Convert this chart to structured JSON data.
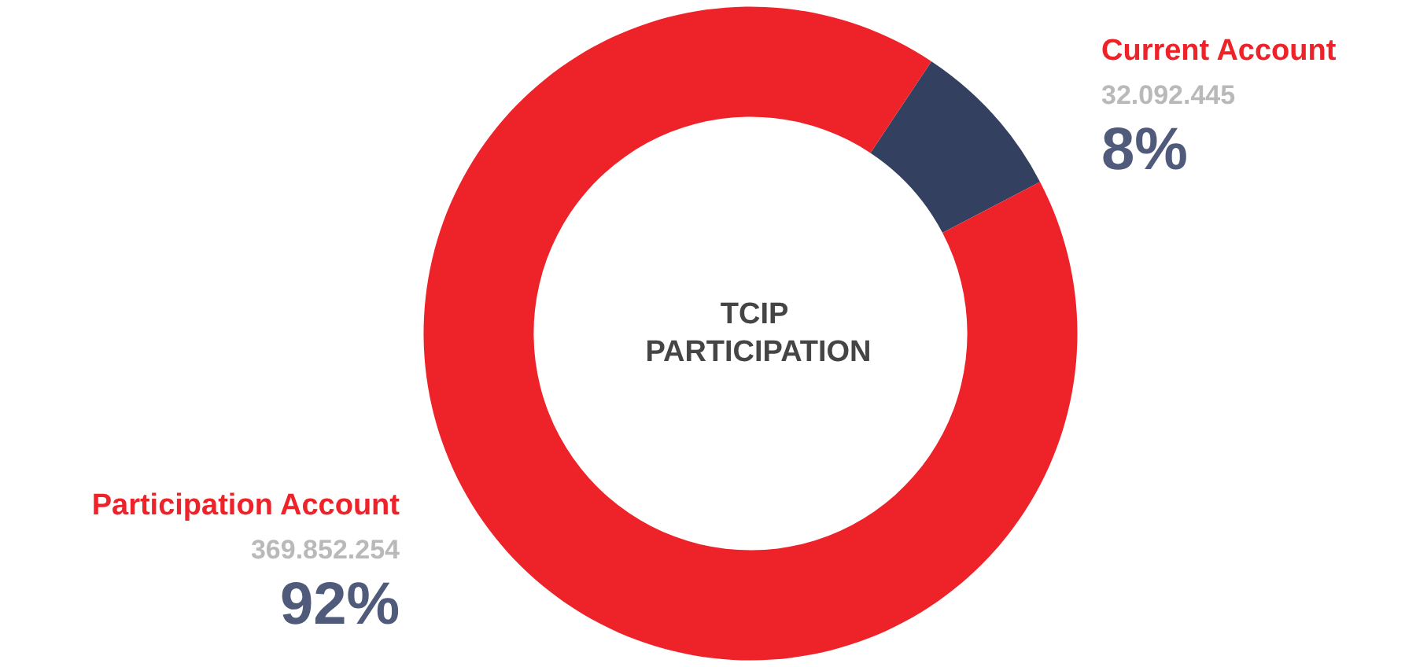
{
  "chart_data": {
    "type": "donut",
    "title": "TCIP PARTICIPATION",
    "categories": [
      "Current Account",
      "Participation Account"
    ],
    "values": [
      32092445,
      369852254
    ],
    "colors": [
      "#34405f",
      "#ee2229"
    ],
    "value_labels": [
      "32.092.445",
      "369.852.254"
    ],
    "annotations": [
      {
        "text": "8%",
        "x": "Current Account"
      },
      {
        "text": "92%",
        "x": "Participation Account"
      }
    ],
    "legend": false
  }
}
